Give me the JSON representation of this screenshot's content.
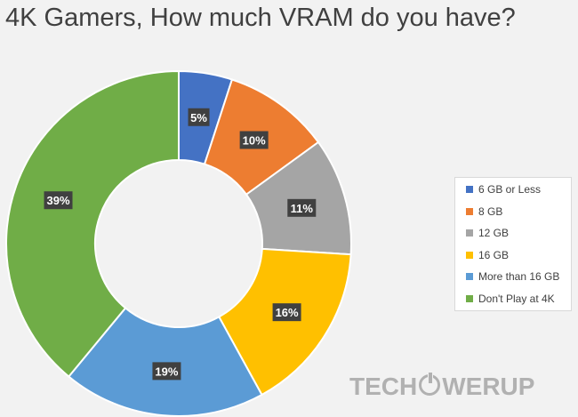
{
  "chart_data": {
    "type": "pie",
    "variant": "donut",
    "title": "4K Gamers, How much VRAM do you have?",
    "slices": [
      {
        "label": "6 GB or Less",
        "value": 5,
        "display": "5%",
        "color": "#4472c4"
      },
      {
        "label": "8 GB",
        "value": 10,
        "display": "10%",
        "color": "#ed7d31"
      },
      {
        "label": "12 GB",
        "value": 11,
        "display": "11%",
        "color": "#a5a5a5"
      },
      {
        "label": "16 GB",
        "value": 16,
        "display": "16%",
        "color": "#ffc000"
      },
      {
        "label": "More than 16 GB",
        "value": 19,
        "display": "19%",
        "color": "#5b9bd5"
      },
      {
        "label": "Don't Play at 4K",
        "value": 39,
        "display": "39%",
        "color": "#70ad47"
      }
    ],
    "legend_position": "right"
  },
  "watermark": {
    "before": "TECH",
    "after": "WERUP"
  }
}
